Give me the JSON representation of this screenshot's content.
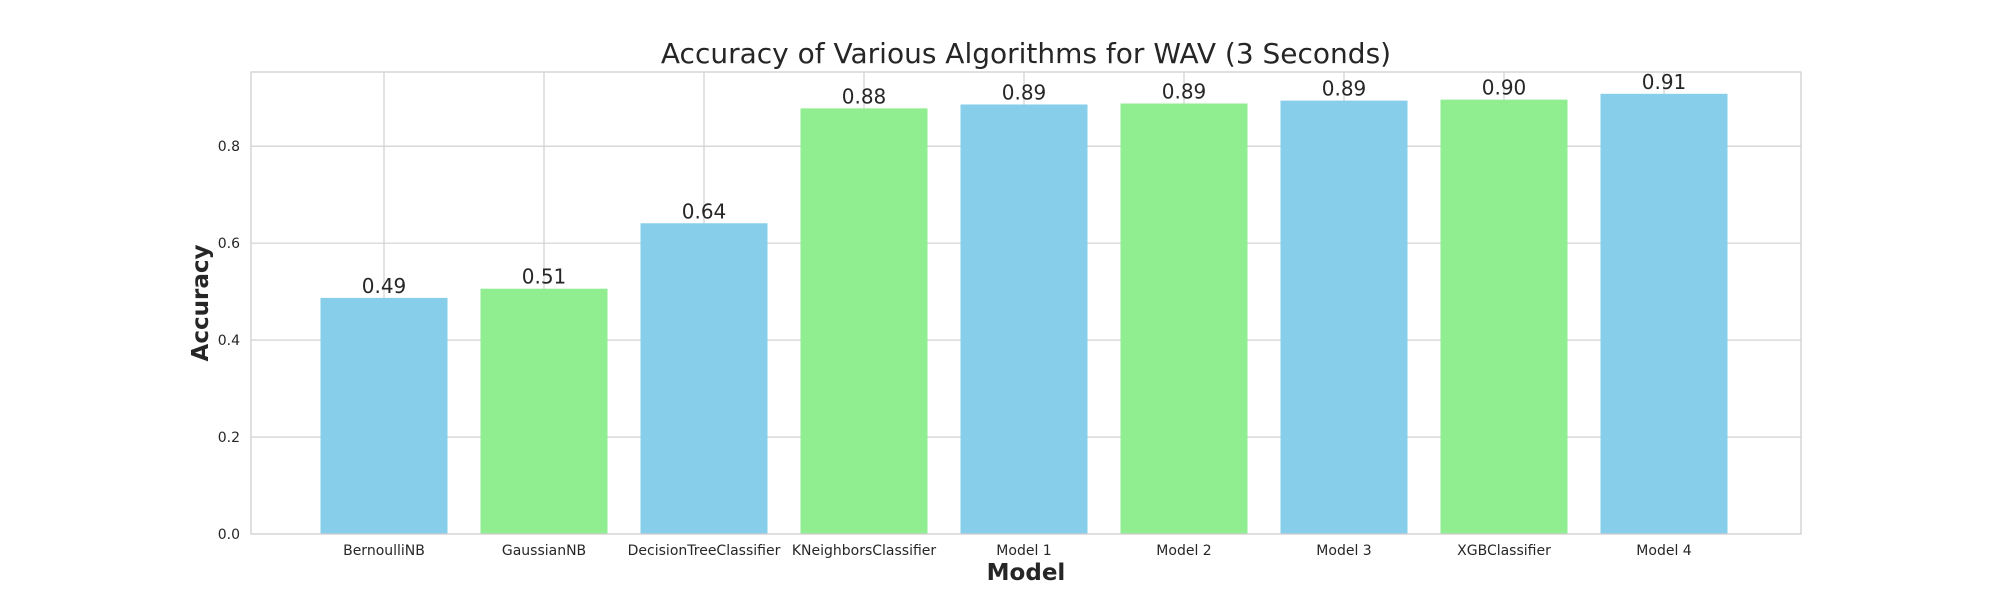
{
  "chart_data": {
    "type": "bar",
    "title": "Accuracy of Various Algorithms for WAV (3 Seconds)",
    "xlabel": "Model",
    "ylabel": "Accuracy",
    "categories": [
      "BernoulliNB",
      "GaussianNB",
      "DecisionTreeClassifier",
      "KNeighborsClassifier",
      "Model 1",
      "Model 2",
      "Model 3",
      "XGBClassifier",
      "Model 4"
    ],
    "values": [
      0.487,
      0.506,
      0.641,
      0.878,
      0.886,
      0.888,
      0.894,
      0.896,
      0.908
    ],
    "data_labels": [
      "0.49",
      "0.51",
      "0.64",
      "0.88",
      "0.89",
      "0.89",
      "0.89",
      "0.90",
      "0.91"
    ],
    "bar_colors": [
      "#87CEEB",
      "#90EE90",
      "#87CEEB",
      "#90EE90",
      "#87CEEB",
      "#90EE90",
      "#87CEEB",
      "#90EE90",
      "#87CEEB"
    ],
    "ylim": [
      0,
      0.953
    ],
    "yticks": [
      0.0,
      0.2,
      0.4,
      0.6,
      0.8
    ],
    "ytick_labels": [
      "0.0",
      "0.2",
      "0.4",
      "0.6",
      "0.8"
    ],
    "grid": true,
    "grid_color": "#cccccc",
    "text_color": "#262626"
  }
}
